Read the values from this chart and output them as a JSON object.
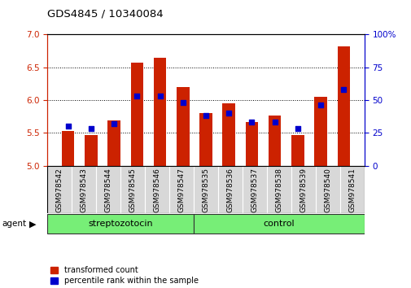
{
  "title": "GDS4845 / 10340084",
  "samples": [
    "GSM978542",
    "GSM978543",
    "GSM978544",
    "GSM978545",
    "GSM978546",
    "GSM978547",
    "GSM978535",
    "GSM978536",
    "GSM978537",
    "GSM978538",
    "GSM978539",
    "GSM978540",
    "GSM978541"
  ],
  "transformed_count": [
    5.53,
    5.47,
    5.69,
    6.57,
    6.65,
    6.2,
    5.8,
    5.95,
    5.67,
    5.77,
    5.47,
    6.05,
    6.82
  ],
  "percentile_rank": [
    30,
    28,
    32,
    53,
    53,
    48,
    38,
    40,
    33,
    33,
    28,
    46,
    58
  ],
  "ylim_left": [
    5.0,
    7.0
  ],
  "ylim_right": [
    0,
    100
  ],
  "yticks_left": [
    5.0,
    5.5,
    6.0,
    6.5,
    7.0
  ],
  "yticks_right": [
    0,
    25,
    50,
    75,
    100
  ],
  "bar_color": "#cc2200",
  "dot_color": "#0000cc",
  "bar_bottom": 5.0,
  "n_strep": 6,
  "n_control": 7,
  "group_color": "#77ee77",
  "xtick_bg_color": "#cccccc",
  "legend_items": [
    {
      "label": "transformed count",
      "color": "#cc2200"
    },
    {
      "label": "percentile rank within the sample",
      "color": "#0000cc"
    }
  ]
}
